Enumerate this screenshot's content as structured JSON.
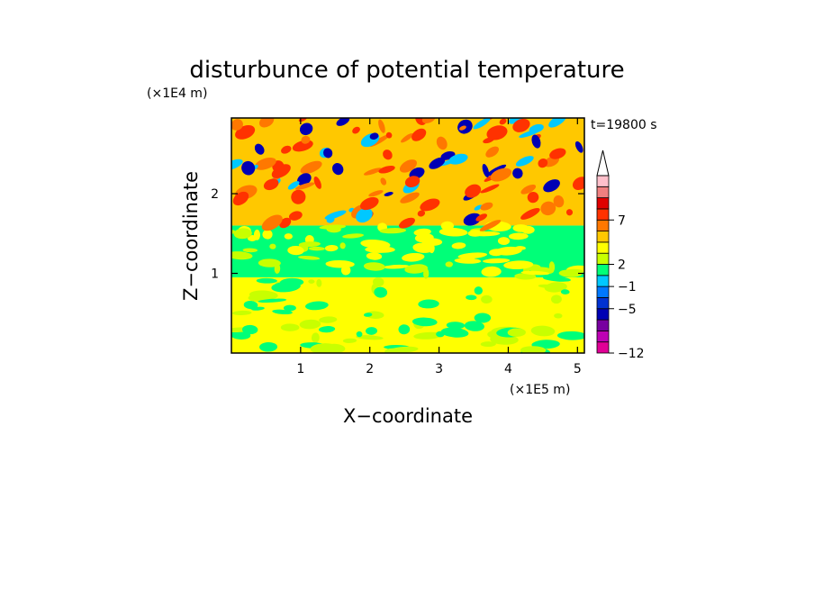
{
  "chart_data": {
    "type": "heatmap",
    "title": "disturbunce of potential temperature",
    "time_label": "t=19800 s",
    "xlabel": "X−coordinate",
    "ylabel": "Z−coordinate",
    "x_unit": "(×1E5 m)",
    "y_unit": "(×1E4 m)",
    "xlim": [
      0,
      5.1
    ],
    "ylim": [
      0,
      2.95
    ],
    "x_ticks": [
      "1",
      "2",
      "3",
      "4",
      "5"
    ],
    "y_ticks": [
      "1",
      "2"
    ],
    "grid": false,
    "colorbar": {
      "colors": [
        "#e10096",
        "#be00b4",
        "#7800a0",
        "#0000b4",
        "#0032d2",
        "#0078ff",
        "#00c8ff",
        "#00ff78",
        "#c8ff00",
        "#ffff00",
        "#ffc800",
        "#ff7800",
        "#ff3200",
        "#e00000",
        "#f08080",
        "#ffc0cb"
      ],
      "labels": [
        "−12",
        "−5",
        "−1",
        "2",
        "7"
      ],
      "extend": "max"
    },
    "field_layers": [
      {
        "z_range": [
          0,
          0.95
        ],
        "dominant": "#ffff00",
        "secondary": [
          "#c8ff00",
          "#00ff78"
        ]
      },
      {
        "z_range": [
          0.95,
          1.6
        ],
        "dominant": "#00ff78",
        "secondary": [
          "#c8ff00",
          "#ffff00"
        ]
      },
      {
        "z_range": [
          1.6,
          2.95
        ],
        "dominant": "#ffc800",
        "secondary": [
          "#ff7800",
          "#0000b4",
          "#00c8ff",
          "#ff3200"
        ]
      }
    ]
  }
}
